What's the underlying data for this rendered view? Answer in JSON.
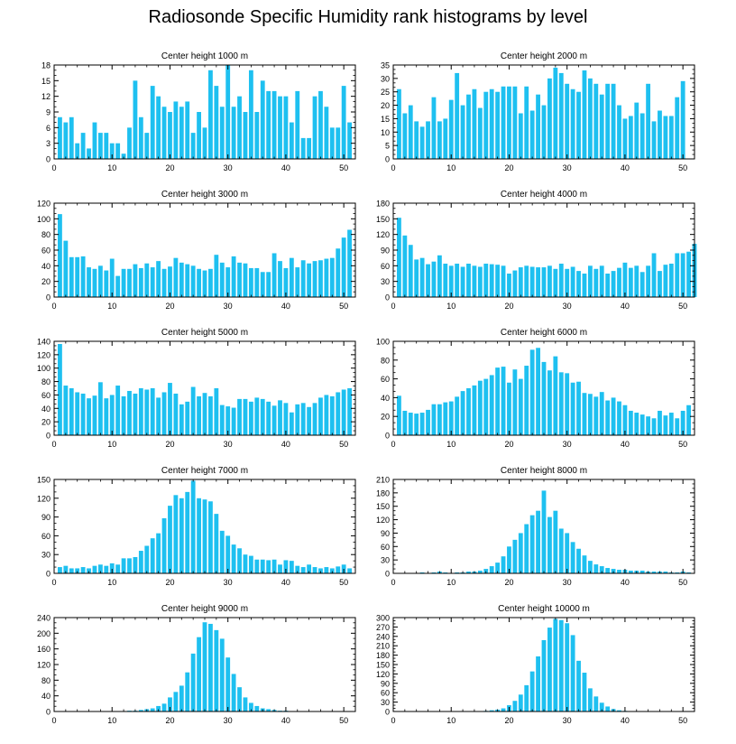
{
  "figure": {
    "title": "Radiosonde Specific Humidity rank histograms by level",
    "bar_color": "#1ec0f0"
  },
  "chart_data": [
    {
      "type": "bar",
      "title": "Center height 1000 m",
      "ylim": [
        0,
        18
      ],
      "yticks": [
        0,
        3,
        6,
        9,
        12,
        15,
        18
      ],
      "xlim": [
        0,
        52
      ],
      "xticks": [
        0,
        10,
        20,
        30,
        40,
        50
      ],
      "values": [
        8,
        7,
        8,
        3,
        5,
        2,
        7,
        5,
        5,
        3,
        3,
        1,
        6,
        15,
        8,
        5,
        14,
        12,
        10,
        9,
        11,
        10,
        11,
        5,
        9,
        6,
        17,
        14,
        10,
        18,
        10,
        12,
        9,
        17,
        9,
        15,
        13,
        13,
        12,
        12,
        7,
        13,
        4,
        4,
        12,
        13,
        10,
        6,
        6,
        14,
        7
      ]
    },
    {
      "type": "bar",
      "title": "Center height 2000 m",
      "ylim": [
        0,
        35
      ],
      "yticks": [
        0,
        5,
        10,
        15,
        20,
        25,
        30,
        35
      ],
      "xlim": [
        0,
        52
      ],
      "xticks": [
        0,
        10,
        20,
        30,
        40,
        50
      ],
      "values": [
        26,
        17,
        20,
        14,
        12,
        14,
        23,
        14,
        15,
        22,
        32,
        20,
        24,
        26,
        19,
        25,
        26,
        25,
        27,
        27,
        27,
        17,
        27,
        18,
        24,
        20,
        30,
        34,
        32,
        28,
        26,
        25,
        33,
        30,
        28,
        24,
        28,
        28,
        20,
        15,
        16,
        21,
        17,
        28,
        14,
        18,
        16,
        16,
        23,
        29
      ]
    },
    {
      "type": "bar",
      "title": "Center height 3000 m",
      "ylim": [
        0,
        120
      ],
      "yticks": [
        0,
        20,
        40,
        60,
        80,
        100,
        120
      ],
      "xlim": [
        0,
        52
      ],
      "xticks": [
        0,
        10,
        20,
        30,
        40,
        50
      ],
      "values": [
        106,
        72,
        51,
        51,
        52,
        38,
        36,
        40,
        34,
        49,
        27,
        36,
        36,
        42,
        37,
        43,
        38,
        46,
        36,
        39,
        50,
        44,
        42,
        40,
        36,
        34,
        36,
        54,
        44,
        38,
        52,
        44,
        43,
        37,
        37,
        32,
        32,
        56,
        46,
        37,
        50,
        38,
        47,
        43,
        46,
        47,
        49,
        50,
        62,
        76,
        86
      ]
    },
    {
      "type": "bar",
      "title": "Center height 4000 m",
      "ylim": [
        0,
        180
      ],
      "yticks": [
        0,
        30,
        60,
        90,
        120,
        150,
        180
      ],
      "xlim": [
        0,
        52
      ],
      "xticks": [
        0,
        10,
        20,
        30,
        40,
        50
      ],
      "values": [
        152,
        118,
        100,
        72,
        75,
        63,
        68,
        80,
        64,
        60,
        64,
        58,
        64,
        60,
        58,
        64,
        63,
        62,
        60,
        45,
        51,
        57,
        60,
        58,
        57,
        57,
        60,
        54,
        64,
        54,
        58,
        50,
        45,
        60,
        54,
        60,
        45,
        50,
        56,
        66,
        56,
        60,
        48,
        60,
        84,
        50,
        62,
        64,
        84,
        84,
        87,
        102
      ]
    },
    {
      "type": "bar",
      "title": "Center height 5000 m",
      "ylim": [
        0,
        140
      ],
      "yticks": [
        0,
        20,
        40,
        60,
        80,
        100,
        120,
        140
      ],
      "xlim": [
        0,
        52
      ],
      "xticks": [
        0,
        10,
        20,
        30,
        40,
        50
      ],
      "values": [
        136,
        74,
        70,
        64,
        62,
        55,
        59,
        79,
        55,
        60,
        74,
        58,
        66,
        62,
        70,
        68,
        70,
        56,
        64,
        78,
        62,
        46,
        50,
        72,
        58,
        63,
        58,
        70,
        45,
        43,
        41,
        54,
        54,
        50,
        56,
        54,
        50,
        44,
        52,
        48,
        34,
        46,
        48,
        42,
        48,
        56,
        60,
        58,
        64,
        68,
        70
      ]
    },
    {
      "type": "bar",
      "title": "Center height 6000 m",
      "ylim": [
        0,
        100
      ],
      "yticks": [
        0,
        20,
        40,
        60,
        80,
        100
      ],
      "xlim": [
        0,
        52
      ],
      "xticks": [
        0,
        10,
        20,
        30,
        40,
        50
      ],
      "values": [
        42,
        26,
        24,
        23,
        24,
        27,
        33,
        33,
        35,
        36,
        41,
        47,
        50,
        53,
        58,
        60,
        64,
        72,
        73,
        56,
        70,
        60,
        74,
        91,
        93,
        78,
        69,
        84,
        67,
        66,
        56,
        57,
        45,
        44,
        41,
        46,
        37,
        40,
        36,
        32,
        26,
        24,
        22,
        20,
        18,
        26,
        21,
        24,
        18,
        26,
        32
      ]
    },
    {
      "type": "bar",
      "title": "Center height 7000 m",
      "ylim": [
        0,
        150
      ],
      "yticks": [
        0,
        30,
        60,
        90,
        120,
        150
      ],
      "xlim": [
        0,
        52
      ],
      "xticks": [
        0,
        10,
        20,
        30,
        40,
        50
      ],
      "values": [
        10,
        12,
        8,
        8,
        10,
        8,
        12,
        14,
        12,
        16,
        14,
        24,
        24,
        26,
        36,
        44,
        56,
        64,
        88,
        108,
        125,
        120,
        130,
        148,
        120,
        118,
        115,
        95,
        68,
        60,
        46,
        40,
        30,
        28,
        22,
        22,
        21,
        22,
        14,
        21,
        20,
        12,
        10,
        14,
        10,
        8,
        10,
        8,
        11,
        14,
        8
      ]
    },
    {
      "type": "bar",
      "title": "Center height 8000 m",
      "ylim": [
        0,
        210
      ],
      "yticks": [
        0,
        30,
        60,
        90,
        120,
        150,
        180,
        210
      ],
      "xlim": [
        0,
        52
      ],
      "xticks": [
        0,
        10,
        20,
        30,
        40,
        50
      ],
      "values": [
        0,
        0,
        0,
        0,
        2,
        0,
        2,
        4,
        2,
        0,
        2,
        2,
        4,
        4,
        6,
        10,
        16,
        24,
        38,
        60,
        75,
        90,
        110,
        130,
        140,
        185,
        126,
        140,
        100,
        90,
        70,
        55,
        40,
        28,
        20,
        16,
        12,
        10,
        8,
        8,
        6,
        6,
        6,
        4,
        4,
        4,
        4,
        2,
        2,
        4,
        2
      ]
    },
    {
      "type": "bar",
      "title": "Center height 9000 m",
      "ylim": [
        0,
        240
      ],
      "yticks": [
        0,
        40,
        80,
        120,
        160,
        200,
        240
      ],
      "xlim": [
        0,
        52
      ],
      "xticks": [
        0,
        10,
        20,
        30,
        40,
        50
      ],
      "values": [
        0,
        0,
        0,
        0,
        0,
        0,
        0,
        0,
        0,
        0,
        1,
        1,
        2,
        2,
        4,
        6,
        8,
        14,
        20,
        36,
        50,
        66,
        100,
        148,
        190,
        228,
        224,
        208,
        186,
        138,
        96,
        62,
        36,
        22,
        14,
        8,
        6,
        4,
        2,
        2,
        1,
        1,
        0,
        0,
        0,
        0,
        0,
        0,
        0,
        0
      ]
    },
    {
      "type": "bar",
      "title": "Center height 10000 m",
      "ylim": [
        0,
        300
      ],
      "yticks": [
        0,
        30,
        60,
        90,
        120,
        150,
        180,
        210,
        240,
        270,
        300
      ],
      "xlim": [
        0,
        52
      ],
      "xticks": [
        0,
        10,
        20,
        30,
        40,
        50
      ],
      "values": [
        0,
        0,
        0,
        0,
        0,
        0,
        0,
        0,
        0,
        0,
        0,
        0,
        0,
        0,
        1,
        2,
        4,
        6,
        10,
        20,
        34,
        54,
        84,
        128,
        176,
        228,
        268,
        296,
        292,
        282,
        244,
        162,
        124,
        74,
        48,
        28,
        16,
        8,
        4,
        2,
        1,
        1,
        0,
        0,
        0,
        0,
        0,
        0,
        0,
        0
      ]
    }
  ]
}
